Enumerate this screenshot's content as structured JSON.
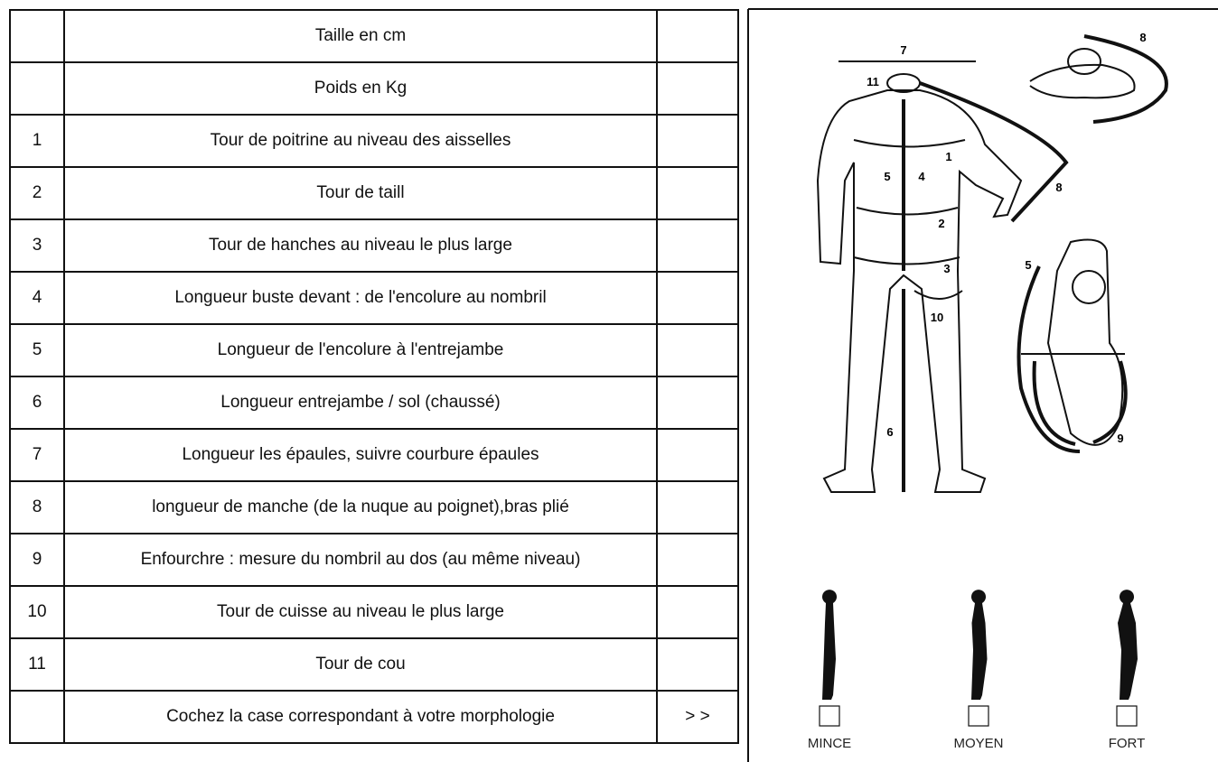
{
  "table": {
    "rows": [
      [
        "",
        "Taille en cm",
        ""
      ],
      [
        "",
        "Poids en Kg",
        ""
      ],
      [
        "1",
        "Tour de poitrine au niveau des aisselles",
        ""
      ],
      [
        "2",
        "Tour de taill",
        ""
      ],
      [
        "3",
        "Tour de hanches au niveau le plus large",
        ""
      ],
      [
        "4",
        "Longueur buste devant : de l'encolure au nombril",
        ""
      ],
      [
        "5",
        "Longueur de l'encolure à l'entrejambe",
        ""
      ],
      [
        "6",
        "Longueur entrejambe / sol (chaussé)",
        ""
      ],
      [
        "7",
        "Longueur les épaules, suivre courbure épaules",
        ""
      ],
      [
        "8",
        "longueur de manche (de la nuque au poignet),bras plié",
        ""
      ],
      [
        "9",
        "Enfourchre : mesure du nombril au dos (au même niveau)",
        ""
      ],
      [
        "10",
        "Tour de cuisse au niveau le plus large",
        ""
      ],
      [
        "11",
        "Tour de cou",
        ""
      ],
      [
        "",
        "Cochez la case correspondant à votre morphologie",
        "> >"
      ]
    ]
  },
  "diagram": {
    "markers": [
      "7",
      "11",
      "1",
      "4",
      "5",
      "2",
      "3",
      "10",
      "6",
      "8",
      "8",
      "5",
      "9"
    ],
    "morphologies": [
      "MINCE",
      "MOYEN",
      "FORT"
    ]
  }
}
